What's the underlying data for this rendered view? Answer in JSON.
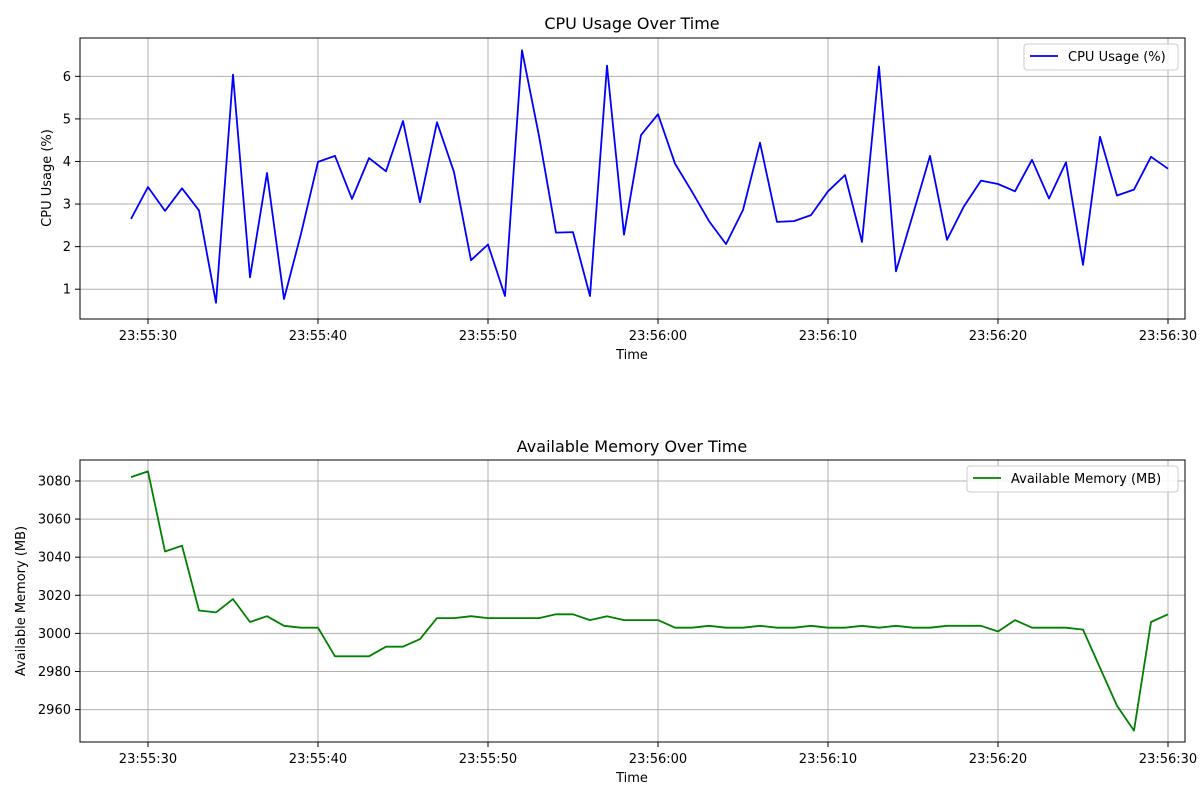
{
  "chart_data": [
    {
      "type": "line",
      "title": "CPU Usage Over Time",
      "xlabel": "Time",
      "ylabel": "CPU Usage (%)",
      "grid": true,
      "legend_position": "top-right",
      "xlim": [
        "23:55:26",
        "23:56:31"
      ],
      "ylim": [
        0.3,
        6.9
      ],
      "x_ticks": [
        "23:55:30",
        "23:55:40",
        "23:55:50",
        "23:56:00",
        "23:56:10",
        "23:56:20",
        "23:56:30"
      ],
      "y_ticks": [
        1,
        2,
        3,
        4,
        5,
        6
      ],
      "x": [
        "23:55:29",
        "23:55:30",
        "23:55:31",
        "23:55:32",
        "23:55:33",
        "23:55:34",
        "23:55:35",
        "23:55:36",
        "23:55:37",
        "23:55:38",
        "23:55:39",
        "23:55:40",
        "23:55:41",
        "23:55:42",
        "23:55:43",
        "23:55:44",
        "23:55:45",
        "23:55:46",
        "23:55:47",
        "23:55:48",
        "23:55:49",
        "23:55:50",
        "23:55:51",
        "23:55:52",
        "23:55:53",
        "23:55:54",
        "23:55:55",
        "23:55:56",
        "23:55:57",
        "23:55:58",
        "23:55:59",
        "23:56:00",
        "23:56:01",
        "23:56:02",
        "23:56:03",
        "23:56:04",
        "23:56:05",
        "23:56:06",
        "23:56:07",
        "23:56:08",
        "23:56:09",
        "23:56:10",
        "23:56:11",
        "23:56:12",
        "23:56:13",
        "23:56:14",
        "23:56:15",
        "23:56:16",
        "23:56:17",
        "23:56:18",
        "23:56:19",
        "23:56:20",
        "23:56:21",
        "23:56:22",
        "23:56:23",
        "23:56:24",
        "23:56:25",
        "23:56:26",
        "23:56:27",
        "23:56:28",
        "23:56:29",
        "23:56:30"
      ],
      "series": [
        {
          "name": "CPU Usage (%)",
          "color": "#0000ff",
          "values": [
            2.65,
            3.4,
            2.84,
            3.37,
            2.85,
            0.68,
            6.04,
            1.28,
            3.73,
            0.77,
            2.3,
            3.99,
            4.13,
            3.12,
            4.08,
            3.77,
            4.95,
            3.04,
            4.92,
            3.75,
            1.68,
            2.05,
            0.84,
            6.61,
            4.6,
            2.33,
            2.34,
            0.84,
            6.25,
            2.28,
            4.62,
            5.11,
            3.95,
            3.29,
            2.6,
            2.06,
            2.86,
            4.44,
            2.58,
            2.6,
            2.74,
            3.3,
            3.68,
            2.11,
            6.23,
            1.42,
            2.76,
            4.13,
            2.16,
            2.95,
            3.55,
            3.47,
            3.3,
            4.04,
            3.13,
            3.98,
            1.57,
            4.58,
            3.2,
            3.34,
            4.11,
            3.83
          ]
        }
      ]
    },
    {
      "type": "line",
      "title": "Available Memory Over Time",
      "xlabel": "Time",
      "ylabel": "Available Memory (MB)",
      "grid": true,
      "legend_position": "top-right",
      "xlim": [
        "23:55:26",
        "23:56:31"
      ],
      "ylim": [
        2943,
        3091
      ],
      "x_ticks": [
        "23:55:30",
        "23:55:40",
        "23:55:50",
        "23:56:00",
        "23:56:10",
        "23:56:20",
        "23:56:30"
      ],
      "y_ticks": [
        2960,
        2980,
        3000,
        3020,
        3040,
        3060,
        3080
      ],
      "x": [
        "23:55:29",
        "23:55:30",
        "23:55:31",
        "23:55:32",
        "23:55:33",
        "23:55:34",
        "23:55:35",
        "23:55:36",
        "23:55:37",
        "23:55:38",
        "23:55:39",
        "23:55:40",
        "23:55:41",
        "23:55:42",
        "23:55:43",
        "23:55:44",
        "23:55:45",
        "23:55:46",
        "23:55:47",
        "23:55:48",
        "23:55:49",
        "23:55:50",
        "23:55:51",
        "23:55:52",
        "23:55:53",
        "23:55:54",
        "23:55:55",
        "23:55:56",
        "23:55:57",
        "23:55:58",
        "23:55:59",
        "23:56:00",
        "23:56:01",
        "23:56:02",
        "23:56:03",
        "23:56:04",
        "23:56:05",
        "23:56:06",
        "23:56:07",
        "23:56:08",
        "23:56:09",
        "23:56:10",
        "23:56:11",
        "23:56:12",
        "23:56:13",
        "23:56:14",
        "23:56:15",
        "23:56:16",
        "23:56:17",
        "23:56:18",
        "23:56:19",
        "23:56:20",
        "23:56:21",
        "23:56:22",
        "23:56:23",
        "23:56:24",
        "23:56:25",
        "23:56:26",
        "23:56:27",
        "23:56:28",
        "23:56:29",
        "23:56:30"
      ],
      "series": [
        {
          "name": "Available Memory (MB)",
          "color": "#008000",
          "values": [
            3082,
            3085,
            3043,
            3046,
            3012,
            3011,
            3018,
            3006,
            3009,
            3004,
            3003,
            3003,
            2988,
            2988,
            2988,
            2993,
            2993,
            2997,
            3008,
            3008,
            3009,
            3008,
            3008,
            3008,
            3008,
            3010,
            3010,
            3007,
            3009,
            3007,
            3007,
            3007,
            3003,
            3003,
            3004,
            3003,
            3003,
            3004,
            3003,
            3003,
            3004,
            3003,
            3003,
            3004,
            3003,
            3004,
            3003,
            3003,
            3004,
            3004,
            3004,
            3001,
            3007,
            3003,
            3003,
            3003,
            3002,
            2982,
            2962,
            2949,
            3006,
            3010
          ]
        }
      ]
    }
  ]
}
